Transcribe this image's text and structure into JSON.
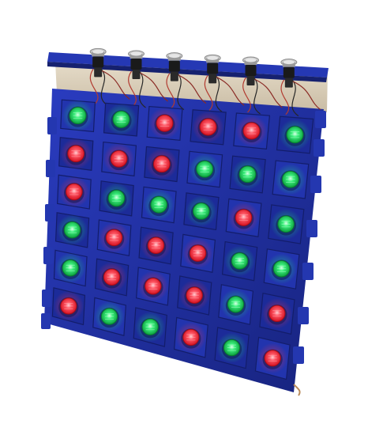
{
  "photo": {
    "subject": "",
    "background_color": "#ffffff"
  },
  "colors": {
    "panel_blue": "#1f2d9b",
    "panel_blue_dark": "#152174",
    "panel_blue_light": "#2f43c8",
    "rail_blue": "#2538b4",
    "board_beige": "#d9cdb8",
    "wire_red": "#b23a2f",
    "wire_black": "#262626",
    "switch_black": "#1a1a1a",
    "switch_silver": "#c9c9c9",
    "led_red": "#ff2a3a",
    "led_red_core": "#ff8a92",
    "led_green": "#16d35a",
    "led_green_core": "#8dffb7"
  },
  "switch_row": {
    "count": 6
  },
  "led_grid": {
    "rows": 6,
    "cols": 6,
    "states": [
      [
        "green",
        "green",
        "red",
        "red",
        "red",
        "green"
      ],
      [
        "red",
        "red",
        "red",
        "green",
        "green",
        "green"
      ],
      [
        "red",
        "green",
        "green",
        "green",
        "red",
        "green"
      ],
      [
        "green",
        "red",
        "red",
        "red",
        "green",
        "green"
      ],
      [
        "green",
        "red",
        "red",
        "red",
        "green",
        "red"
      ],
      [
        "red",
        "green",
        "green",
        "red",
        "green",
        "red"
      ]
    ]
  }
}
